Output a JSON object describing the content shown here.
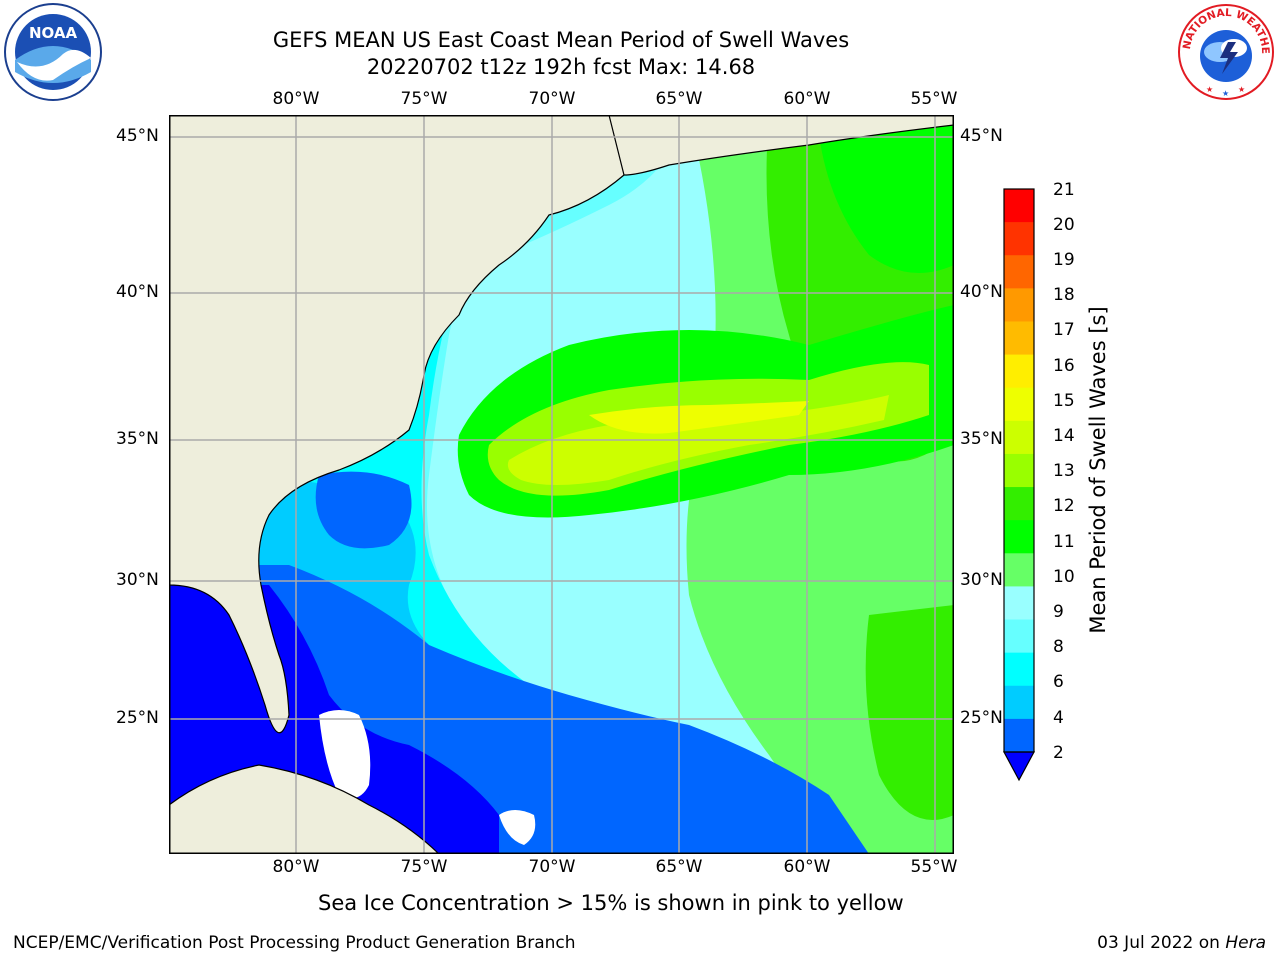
{
  "header": {
    "title_line1": "GEFS MEAN US East Coast Mean Period of Swell Waves",
    "title_line2": "20220702 t12z 192h fcst   Max: 14.68"
  },
  "logos": {
    "left_icon": "noaa-logo-icon",
    "left_text": "NOAA",
    "right_icon": "nws-logo-icon",
    "right_text": "NATIONAL WEATHER SERVICE"
  },
  "map": {
    "lon_labels": [
      "80°W",
      "75°W",
      "70°W",
      "65°W",
      "60°W",
      "55°W"
    ],
    "lat_labels": [
      "45°N",
      "40°N",
      "35°N",
      "30°N",
      "25°N"
    ],
    "land_color": "#eeeedc",
    "no_data_color": "#ffffff"
  },
  "colorbar": {
    "title": "Mean Period of Swell Waves [s]",
    "ticks": [
      "21",
      "20",
      "19",
      "18",
      "17",
      "16",
      "15",
      "14",
      "13",
      "12",
      "11",
      "10",
      "9",
      "8",
      "6",
      "4",
      "2"
    ],
    "levels": [
      {
        "from": 2,
        "to": 4,
        "color": "#0066ff"
      },
      {
        "from": 4,
        "to": 6,
        "color": "#00ccff"
      },
      {
        "from": 6,
        "to": 7,
        "color": "#00ffff"
      },
      {
        "from": 7,
        "to": 8,
        "color": "#66ffff"
      },
      {
        "from": 8,
        "to": 9,
        "color": "#99ffff"
      },
      {
        "from": 9,
        "to": 10,
        "color": "#66ff66"
      },
      {
        "from": 10,
        "to": 11,
        "color": "#00ff00"
      },
      {
        "from": 11,
        "to": 12,
        "color": "#33ee00"
      },
      {
        "from": 12,
        "to": 13,
        "color": "#99ff00"
      },
      {
        "from": 13,
        "to": 14,
        "color": "#ccff00"
      },
      {
        "from": 14,
        "to": 15,
        "color": "#eeff00"
      },
      {
        "from": 15,
        "to": 16,
        "color": "#ffee00"
      },
      {
        "from": 16,
        "to": 17,
        "color": "#ffbb00"
      },
      {
        "from": 17,
        "to": 18,
        "color": "#ff9900"
      },
      {
        "from": 18,
        "to": 19,
        "color": "#ff6600"
      },
      {
        "from": 19,
        "to": 20,
        "color": "#ff3300"
      },
      {
        "from": 20,
        "to": 21,
        "color": "#ff0000"
      }
    ],
    "extend_color": "#0000ff"
  },
  "footer": {
    "note": "Sea Ice Concentration > 15% is shown in pink to yellow",
    "left": "NCEP/EMC/Verification Post Processing Product Generation Branch",
    "right_prefix": "03 Jul 2022 on ",
    "right_host": "Hera"
  }
}
